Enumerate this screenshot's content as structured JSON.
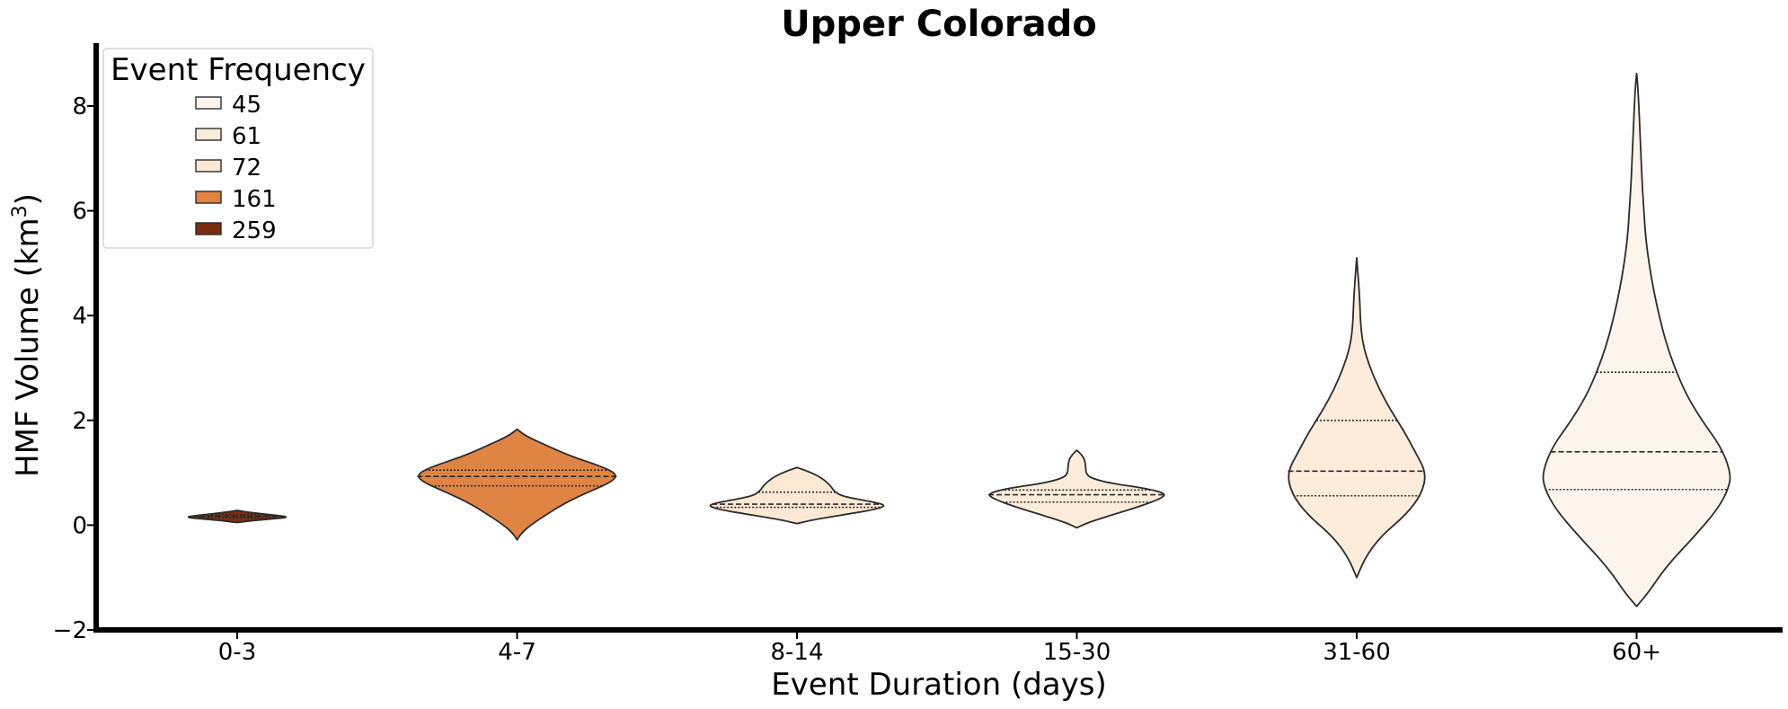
{
  "chart_data": {
    "type": "violin",
    "title": "Upper Colorado",
    "xlabel": "Event Duration (days)",
    "ylabel": "HMF Volume (km",
    "ylabel_sup": "3",
    "ylabel_end": ")",
    "ylim": [
      -2,
      9.2
    ],
    "yticks": [
      -2,
      0,
      2,
      4,
      6,
      8
    ],
    "ytick_labels": [
      "−2",
      "0",
      "2",
      "4",
      "6",
      "8"
    ],
    "grid": false,
    "categories": [
      "0-3",
      "4-7",
      "8-14",
      "15-30",
      "31-60",
      "60+"
    ],
    "legend": {
      "title": "Event Frequency",
      "placement": "top-left",
      "entries": [
        {
          "label": "45",
          "color": "#fdf5ec"
        },
        {
          "label": "61",
          "color": "#fcecd9"
        },
        {
          "label": "72",
          "color": "#fce8d3"
        },
        {
          "label": "161",
          "color": "#e08444"
        },
        {
          "label": "259",
          "color": "#7b2d10"
        }
      ]
    },
    "violins": [
      {
        "category": "0-3",
        "frequency": 259,
        "color": "#7b2d10",
        "quartiles": [
          0.14,
          0.17,
          0.2
        ],
        "profile": [
          [
            0.05,
            0
          ],
          [
            0.1,
            0.2
          ],
          [
            0.15,
            0.48
          ],
          [
            0.19,
            0.34
          ],
          [
            0.24,
            0.12
          ],
          [
            0.28,
            0
          ]
        ]
      },
      {
        "category": "4-7",
        "frequency": 161,
        "color": "#e08444",
        "quartiles": [
          0.75,
          0.93,
          1.05
        ],
        "profile": [
          [
            -0.28,
            0
          ],
          [
            -0.15,
            0.04
          ],
          [
            0,
            0.12
          ],
          [
            0.2,
            0.26
          ],
          [
            0.4,
            0.41
          ],
          [
            0.6,
            0.6
          ],
          [
            0.8,
            0.82
          ],
          [
            0.95,
            0.9
          ],
          [
            1.1,
            0.78
          ],
          [
            1.3,
            0.5
          ],
          [
            1.5,
            0.28
          ],
          [
            1.7,
            0.08
          ],
          [
            1.83,
            0
          ]
        ]
      },
      {
        "category": "8-14",
        "frequency": 72,
        "color": "#fce8d3",
        "quartiles": [
          0.34,
          0.4,
          0.63
        ],
        "profile": [
          [
            0.03,
            0
          ],
          [
            0.1,
            0.14
          ],
          [
            0.2,
            0.42
          ],
          [
            0.3,
            0.7
          ],
          [
            0.38,
            0.8
          ],
          [
            0.45,
            0.66
          ],
          [
            0.55,
            0.4
          ],
          [
            0.65,
            0.33
          ],
          [
            0.75,
            0.3
          ],
          [
            0.85,
            0.25
          ],
          [
            0.95,
            0.18
          ],
          [
            1.05,
            0.07
          ],
          [
            1.1,
            0
          ]
        ]
      },
      {
        "category": "15-30",
        "frequency": 61,
        "color": "#fcecd9",
        "quartiles": [
          0.44,
          0.58,
          0.67
        ],
        "profile": [
          [
            -0.05,
            0
          ],
          [
            0.05,
            0.1
          ],
          [
            0.2,
            0.32
          ],
          [
            0.35,
            0.55
          ],
          [
            0.5,
            0.74
          ],
          [
            0.6,
            0.8
          ],
          [
            0.7,
            0.62
          ],
          [
            0.8,
            0.3
          ],
          [
            0.9,
            0.12
          ],
          [
            1.0,
            0.08
          ],
          [
            1.1,
            0.08
          ],
          [
            1.25,
            0.07
          ],
          [
            1.35,
            0.04
          ],
          [
            1.43,
            0
          ]
        ]
      },
      {
        "category": "31-60",
        "frequency": 61,
        "color": "#fcecd9",
        "quartiles": [
          0.56,
          1.03,
          2.0
        ],
        "profile": [
          [
            -1.0,
            0
          ],
          [
            -0.6,
            0.08
          ],
          [
            -0.2,
            0.22
          ],
          [
            0.2,
            0.44
          ],
          [
            0.6,
            0.58
          ],
          [
            1.0,
            0.62
          ],
          [
            1.4,
            0.52
          ],
          [
            1.8,
            0.42
          ],
          [
            2.2,
            0.3
          ],
          [
            2.6,
            0.2
          ],
          [
            3.0,
            0.12
          ],
          [
            3.4,
            0.06
          ],
          [
            3.8,
            0.035
          ],
          [
            4.4,
            0.025
          ],
          [
            5.1,
            0
          ]
        ]
      },
      {
        "category": "60+",
        "frequency": 45,
        "color": "#fdf5ec",
        "quartiles": [
          0.68,
          1.4,
          2.92
        ],
        "profile": [
          [
            -1.55,
            0
          ],
          [
            -1.3,
            0.1
          ],
          [
            -0.8,
            0.26
          ],
          [
            -0.2,
            0.52
          ],
          [
            0.3,
            0.72
          ],
          [
            0.7,
            0.82
          ],
          [
            1.0,
            0.84
          ],
          [
            1.5,
            0.75
          ],
          [
            2.0,
            0.58
          ],
          [
            2.5,
            0.44
          ],
          [
            3.0,
            0.34
          ],
          [
            3.5,
            0.26
          ],
          [
            4.0,
            0.2
          ],
          [
            4.5,
            0.15
          ],
          [
            5.0,
            0.11
          ],
          [
            5.5,
            0.08
          ],
          [
            6.0,
            0.065
          ],
          [
            6.5,
            0.05
          ],
          [
            7.0,
            0.04
          ],
          [
            7.5,
            0.03
          ],
          [
            8.0,
            0.02
          ],
          [
            8.4,
            0.01
          ],
          [
            8.62,
            0
          ]
        ]
      }
    ]
  }
}
